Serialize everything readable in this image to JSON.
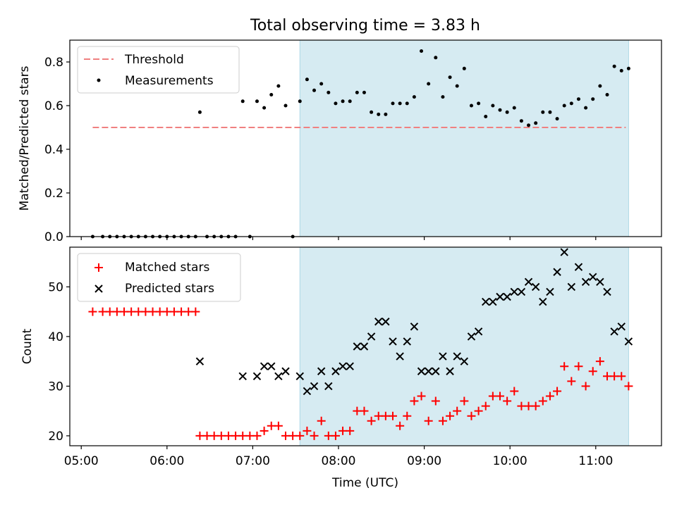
{
  "title": "Total observing time = 3.83 h",
  "chart_data": [
    {
      "type": "scatter",
      "ylabel": "Matched/Predicted stars",
      "xlabel": "",
      "ylim": [
        0,
        0.9
      ],
      "yticks": [
        0.0,
        0.2,
        0.4,
        0.6,
        0.8
      ],
      "ytick_labels": [
        "0.0",
        "0.2",
        "0.4",
        "0.6",
        "0.8"
      ],
      "xlim": [
        "04:52",
        "11:46"
      ],
      "shaded_interval": [
        "07:33",
        "11:23"
      ],
      "shade_color": "#add8e6",
      "legend_position": "upper left",
      "threshold": {
        "name": "Threshold",
        "value": 0.5,
        "x": [
          "05:08",
          "11:21"
        ],
        "color": "#f08080",
        "style": "dashed"
      },
      "series": [
        {
          "name": "Measurements",
          "color": "#000000",
          "marker": "dot",
          "x": [
            "05:08",
            "05:15",
            "05:20",
            "05:25",
            "05:30",
            "05:35",
            "05:40",
            "05:45",
            "05:50",
            "05:55",
            "06:00",
            "06:05",
            "06:10",
            "06:15",
            "06:20",
            "06:23",
            "06:28",
            "06:33",
            "06:38",
            "06:43",
            "06:48",
            "06:53",
            "06:58",
            "07:03",
            "07:08",
            "07:13",
            "07:18",
            "07:23",
            "07:28",
            "07:33",
            "07:38",
            "07:43",
            "07:48",
            "07:53",
            "07:58",
            "08:03",
            "08:08",
            "08:13",
            "08:18",
            "08:23",
            "08:28",
            "08:33",
            "08:38",
            "08:43",
            "08:48",
            "08:53",
            "08:58",
            "09:03",
            "09:08",
            "09:13",
            "09:18",
            "09:23",
            "09:28",
            "09:33",
            "09:38",
            "09:43",
            "09:48",
            "09:53",
            "09:58",
            "10:03",
            "10:08",
            "10:13",
            "10:18",
            "10:23",
            "10:28",
            "10:33",
            "10:38",
            "10:43",
            "10:48",
            "10:53",
            "10:58",
            "11:03",
            "11:08",
            "11:13",
            "11:18",
            "11:23"
          ],
          "values": [
            0,
            0,
            0,
            0,
            0,
            0,
            0,
            0,
            0,
            0,
            0,
            0,
            0,
            0,
            0,
            0.57,
            0,
            0,
            0,
            0,
            0,
            0.62,
            0,
            0.62,
            0.59,
            0.65,
            0.69,
            0.6,
            0,
            0.62,
            0.72,
            0.67,
            0.7,
            0.66,
            0.61,
            0.62,
            0.62,
            0.66,
            0.66,
            0.57,
            0.56,
            0.56,
            0.61,
            0.61,
            0.61,
            0.64,
            0.85,
            0.7,
            0.82,
            0.64,
            0.73,
            0.69,
            0.77,
            0.6,
            0.61,
            0.55,
            0.6,
            0.58,
            0.57,
            0.59,
            0.53,
            0.51,
            0.52,
            0.57,
            0.57,
            0.54,
            0.6,
            0.61,
            0.63,
            0.59,
            0.63,
            0.69,
            0.65,
            0.78,
            0.76,
            0.77
          ]
        }
      ]
    },
    {
      "type": "scatter",
      "xlabel": "Time (UTC)",
      "ylabel": "Count",
      "ylim": [
        18,
        58
      ],
      "yticks": [
        20,
        30,
        40,
        50
      ],
      "ytick_labels": [
        "20",
        "30",
        "40",
        "50"
      ],
      "xlim": [
        "04:52",
        "11:46"
      ],
      "xticks": [
        "05:00",
        "06:00",
        "07:00",
        "08:00",
        "09:00",
        "10:00",
        "11:00"
      ],
      "shaded_interval": [
        "07:33",
        "11:23"
      ],
      "shade_color": "#add8e6",
      "legend_position": "upper left",
      "series": [
        {
          "name": "Matched stars",
          "color": "#ff0000",
          "marker": "plus",
          "x": [
            "05:08",
            "05:15",
            "05:20",
            "05:25",
            "05:30",
            "05:35",
            "05:40",
            "05:45",
            "05:50",
            "05:55",
            "06:00",
            "06:05",
            "06:10",
            "06:15",
            "06:20",
            "06:23",
            "06:28",
            "06:33",
            "06:38",
            "06:43",
            "06:48",
            "06:53",
            "06:58",
            "07:03",
            "07:08",
            "07:13",
            "07:18",
            "07:23",
            "07:28",
            "07:33",
            "07:38",
            "07:43",
            "07:48",
            "07:53",
            "07:58",
            "08:03",
            "08:08",
            "08:13",
            "08:18",
            "08:23",
            "08:28",
            "08:33",
            "08:38",
            "08:43",
            "08:48",
            "08:53",
            "08:58",
            "09:03",
            "09:08",
            "09:13",
            "09:18",
            "09:23",
            "09:28",
            "09:33",
            "09:38",
            "09:43",
            "09:48",
            "09:53",
            "09:58",
            "10:03",
            "10:08",
            "10:13",
            "10:18",
            "10:23",
            "10:28",
            "10:33",
            "10:38",
            "10:43",
            "10:48",
            "10:53",
            "10:58",
            "11:03",
            "11:08",
            "11:13",
            "11:18",
            "11:23"
          ],
          "values": [
            45,
            45,
            45,
            45,
            45,
            45,
            45,
            45,
            45,
            45,
            45,
            45,
            45,
            45,
            45,
            20,
            20,
            20,
            20,
            20,
            20,
            20,
            20,
            20,
            21,
            22,
            22,
            20,
            20,
            20,
            21,
            20,
            23,
            20,
            20,
            21,
            21,
            25,
            25,
            23,
            24,
            24,
            24,
            22,
            24,
            27,
            28,
            23,
            27,
            23,
            24,
            25,
            27,
            24,
            25,
            26,
            28,
            28,
            27,
            29,
            26,
            26,
            26,
            27,
            28,
            29,
            34,
            31,
            34,
            30,
            33,
            35,
            32,
            32,
            32,
            30
          ]
        },
        {
          "name": "Predicted stars",
          "color": "#000000",
          "marker": "x",
          "x": [
            "06:23",
            "06:53",
            "07:03",
            "07:08",
            "07:13",
            "07:18",
            "07:23",
            "07:33",
            "07:38",
            "07:43",
            "07:48",
            "07:53",
            "07:58",
            "08:03",
            "08:08",
            "08:13",
            "08:18",
            "08:23",
            "08:28",
            "08:33",
            "08:38",
            "08:43",
            "08:48",
            "08:53",
            "08:58",
            "09:03",
            "09:08",
            "09:13",
            "09:18",
            "09:23",
            "09:28",
            "09:33",
            "09:38",
            "09:43",
            "09:48",
            "09:53",
            "09:58",
            "10:03",
            "10:08",
            "10:13",
            "10:18",
            "10:23",
            "10:28",
            "10:33",
            "10:38",
            "10:43",
            "10:48",
            "10:53",
            "10:58",
            "11:03",
            "11:08",
            "11:13",
            "11:18",
            "11:23"
          ],
          "values": [
            35,
            32,
            32,
            34,
            34,
            32,
            33,
            32,
            29,
            30,
            33,
            30,
            33,
            34,
            34,
            38,
            38,
            40,
            43,
            43,
            39,
            36,
            39,
            42,
            33,
            33,
            33,
            36,
            33,
            36,
            35,
            40,
            41,
            47,
            47,
            48,
            48,
            49,
            49,
            51,
            50,
            47,
            49,
            53,
            57,
            50,
            54,
            51,
            52,
            51,
            49,
            41,
            42,
            39
          ]
        }
      ]
    }
  ]
}
